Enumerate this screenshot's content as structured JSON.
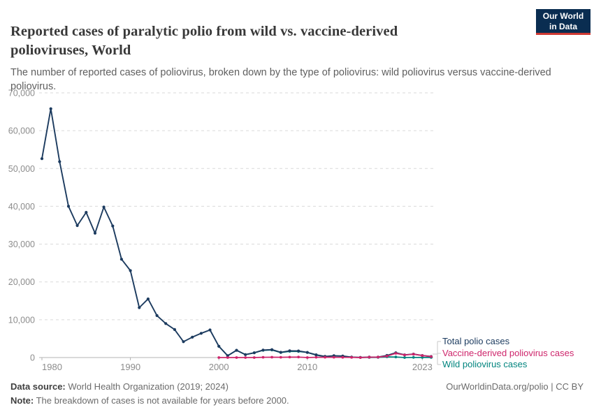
{
  "header": {
    "title": "Reported cases of paralytic polio from wild vs. vaccine-derived polioviruses, World",
    "subtitle": "The number of reported cases of poliovirus, broken down by the type of poliovirus: wild poliovirus versus vaccine-derived poliovirus.",
    "logo": {
      "line1": "Our World",
      "line2": "in Data",
      "bg_color": "#0A2D51",
      "accent_color": "#CE3A33"
    }
  },
  "chart_data": {
    "type": "line",
    "title": "Reported cases of paralytic polio from wild vs. vaccine-derived polioviruses, World",
    "xlabel": "",
    "ylabel": "",
    "x_range": [
      1980,
      2024
    ],
    "ylim": [
      0,
      70000
    ],
    "yticks": [
      0,
      10000,
      20000,
      30000,
      40000,
      50000,
      60000,
      70000
    ],
    "xticks": [
      1980,
      1990,
      2000,
      2010,
      2023
    ],
    "grid": "horizontal-dashed",
    "legend_position": "right-of-line-ends",
    "series": [
      {
        "name": "Total polio cases",
        "color": "#1C3B5F",
        "start_year": 1980,
        "values": [
          52600,
          65800,
          51800,
          40000,
          34900,
          38400,
          32900,
          39800,
          34800,
          26000,
          23000,
          13200,
          15500,
          11100,
          9000,
          7400,
          4200,
          5400,
          6400,
          7300,
          2971,
          483,
          1920,
          784,
          1258,
          1980,
          2092,
          1385,
          1768,
          1734,
          1352,
          716,
          294,
          481,
          415,
          106,
          42,
          118,
          137,
          554,
          1253,
          694,
          908,
          539,
          280
        ]
      },
      {
        "name": "Vaccine-derived poliovirus cases",
        "color": "#CE256B",
        "start_year": 2000,
        "values": [
          0,
          3,
          5,
          2,
          0,
          70,
          95,
          70,
          116,
          130,
          0,
          66,
          71,
          65,
          56,
          32,
          5,
          96,
          104,
          378,
          1113,
          688,
          878,
          527,
          265
        ]
      },
      {
        "name": "Wild poliovirus cases",
        "color": "#00847E",
        "start_year": 2000,
        "values": [
          2971,
          480,
          1915,
          782,
          1258,
          1910,
          1997,
          1315,
          1652,
          1604,
          1352,
          650,
          223,
          416,
          359,
          74,
          37,
          22,
          33,
          176,
          140,
          6,
          30,
          12,
          15
        ]
      }
    ]
  },
  "footer": {
    "source_label": "Data source:",
    "source_value": " World Health Organization (2019; 2024)",
    "note_label": "Note:",
    "note_value": " The breakdown of cases is not available for years before 2000.",
    "link": "OurWorldinData.org/polio | CC BY"
  }
}
